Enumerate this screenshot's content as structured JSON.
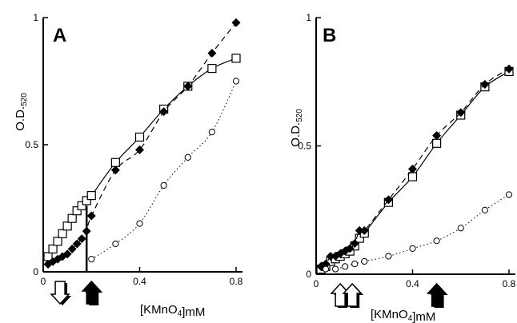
{
  "chart_data": [
    {
      "type": "scatter",
      "panel_label": "A",
      "xlabel": "[KMnO4]mM",
      "ylabel": "O.D.520",
      "xlim": [
        0,
        0.8
      ],
      "ylim": [
        0,
        1
      ],
      "xticks": [
        "0",
        "0.4",
        "0.8"
      ],
      "yticks": [
        "0",
        "0.5",
        "1"
      ],
      "series": [
        {
          "marker": "open-square",
          "line": "solid",
          "x": [
            0.02,
            0.04,
            0.06,
            0.08,
            0.1,
            0.12,
            0.14,
            0.16,
            0.18,
            0.2,
            0.3,
            0.4,
            0.5,
            0.6,
            0.7,
            0.8
          ],
          "y": [
            0.06,
            0.09,
            0.12,
            0.15,
            0.18,
            0.21,
            0.24,
            0.26,
            0.28,
            0.3,
            0.43,
            0.53,
            0.64,
            0.73,
            0.8,
            0.84
          ]
        },
        {
          "marker": "filled-diamond",
          "line": "dashed",
          "x": [
            0.02,
            0.04,
            0.06,
            0.08,
            0.1,
            0.12,
            0.14,
            0.16,
            0.18,
            0.2,
            0.3,
            0.4,
            0.5,
            0.6,
            0.7,
            0.8
          ],
          "y": [
            0.03,
            0.04,
            0.05,
            0.06,
            0.07,
            0.09,
            0.11,
            0.13,
            0.16,
            0.22,
            0.4,
            0.48,
            0.63,
            0.73,
            0.86,
            0.98
          ]
        },
        {
          "marker": "open-circle",
          "line": "dotted",
          "x": [
            0.2,
            0.3,
            0.4,
            0.5,
            0.6,
            0.7,
            0.8
          ],
          "y": [
            0.05,
            0.11,
            0.19,
            0.34,
            0.45,
            0.55,
            0.75
          ]
        }
      ],
      "annotations": [
        {
          "type": "vertical-line",
          "x": 0.18,
          "y_top": 0.26
        },
        {
          "type": "open-arrow",
          "x": 0.07,
          "direction": "down"
        },
        {
          "type": "filled-arrow",
          "x": 0.2,
          "direction": "up"
        }
      ]
    },
    {
      "type": "scatter",
      "panel_label": "B",
      "xlabel": "[KMnO4]mM",
      "ylabel": "O.D.520",
      "xlim": [
        0,
        0.8
      ],
      "ylim": [
        0,
        1
      ],
      "xticks": [
        "0",
        "0.4",
        "0.8"
      ],
      "yticks": [
        "0",
        "0.5",
        "1"
      ],
      "series": [
        {
          "marker": "open-square",
          "line": "solid",
          "x": [
            0.02,
            0.04,
            0.06,
            0.08,
            0.1,
            0.12,
            0.14,
            0.16,
            0.18,
            0.2,
            0.3,
            0.4,
            0.5,
            0.6,
            0.7,
            0.8
          ],
          "y": [
            0.02,
            0.03,
            0.05,
            0.06,
            0.07,
            0.08,
            0.09,
            0.11,
            0.14,
            0.16,
            0.28,
            0.38,
            0.51,
            0.62,
            0.73,
            0.79
          ]
        },
        {
          "marker": "filled-diamond",
          "line": "dashed",
          "x": [
            0.02,
            0.04,
            0.06,
            0.08,
            0.1,
            0.12,
            0.14,
            0.16,
            0.18,
            0.2,
            0.3,
            0.4,
            0.5,
            0.6,
            0.7,
            0.8
          ],
          "y": [
            0.03,
            0.04,
            0.07,
            0.07,
            0.08,
            0.09,
            0.1,
            0.12,
            0.17,
            0.17,
            0.29,
            0.41,
            0.54,
            0.63,
            0.74,
            0.8
          ]
        },
        {
          "marker": "open-circle",
          "line": "dotted",
          "x": [
            0.04,
            0.08,
            0.12,
            0.16,
            0.2,
            0.3,
            0.4,
            0.5,
            0.6,
            0.7,
            0.8
          ],
          "y": [
            0.02,
            0.02,
            0.03,
            0.04,
            0.05,
            0.07,
            0.1,
            0.13,
            0.18,
            0.25,
            0.31
          ]
        }
      ],
      "annotations": [
        {
          "type": "open-arrow",
          "x": 0.1,
          "direction": "up"
        },
        {
          "type": "open-arrow",
          "x": 0.15,
          "direction": "up"
        },
        {
          "type": "filled-arrow",
          "x": 0.5,
          "direction": "up"
        }
      ]
    }
  ]
}
